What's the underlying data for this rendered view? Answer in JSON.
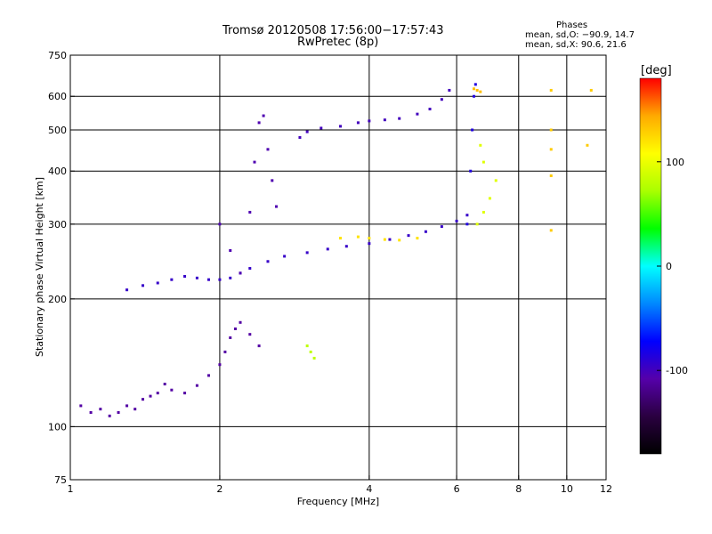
{
  "figure": {
    "title_line1": "Tromsø 20120508 17:56:00−17:57:43",
    "title_line2": "RwPretec (8p)",
    "stats_heading": "Phases",
    "stats_line1": "mean, sd,O: −90.9, 14.7",
    "stats_line2": "mean, sd,X:  90.6, 21.6"
  },
  "chart_data": {
    "type": "scatter",
    "xlabel": "Frequency [MHz]",
    "ylabel": "Stationary phase Virtual Height [km]",
    "x_scale": "log",
    "y_scale": "log",
    "xlim": [
      1,
      12
    ],
    "ylim": [
      75,
      750
    ],
    "x_ticks": [
      1,
      2,
      4,
      6,
      8,
      10,
      12
    ],
    "y_ticks": [
      75,
      100,
      200,
      300,
      400,
      500,
      600,
      750
    ],
    "x_grid": [
      2,
      4,
      6,
      8,
      10
    ],
    "y_grid": [
      100,
      200,
      300,
      400,
      500,
      600
    ],
    "grid": true,
    "colorbar": {
      "label": "[deg]",
      "ticks": [
        100,
        0,
        -100
      ],
      "range": [
        -180,
        180
      ],
      "colormap": [
        "#000000",
        "#2a0040",
        "#5500aa",
        "#0000ff",
        "#0088ff",
        "#00ffff",
        "#00ff00",
        "#aaff00",
        "#ffff00",
        "#ffaa00",
        "#ff0000"
      ]
    },
    "series": [
      {
        "points": [
          [
            1.05,
            112
          ],
          [
            1.1,
            108
          ],
          [
            1.15,
            110
          ],
          [
            1.2,
            106
          ],
          [
            1.25,
            108
          ],
          [
            1.3,
            112
          ],
          [
            1.35,
            110
          ],
          [
            1.4,
            116
          ],
          [
            1.45,
            118
          ],
          [
            1.5,
            120
          ],
          [
            1.55,
            126
          ],
          [
            1.6,
            122
          ],
          [
            1.7,
            120
          ],
          [
            1.8,
            125
          ],
          [
            1.9,
            132
          ],
          [
            2.0,
            140
          ],
          [
            2.05,
            150
          ],
          [
            2.1,
            162
          ],
          [
            2.15,
            170
          ],
          [
            2.2,
            176
          ],
          [
            2.3,
            165
          ],
          [
            2.4,
            155
          ]
        ],
        "phase": -110
      },
      {
        "points": [
          [
            1.3,
            210
          ],
          [
            1.4,
            215
          ],
          [
            1.5,
            218
          ],
          [
            1.6,
            222
          ],
          [
            1.7,
            226
          ],
          [
            1.8,
            224
          ],
          [
            1.9,
            222
          ],
          [
            2.0,
            222
          ],
          [
            2.1,
            224
          ],
          [
            2.2,
            230
          ],
          [
            2.3,
            236
          ],
          [
            2.5,
            245
          ],
          [
            2.7,
            252
          ],
          [
            3.0,
            257
          ],
          [
            3.3,
            262
          ],
          [
            3.6,
            266
          ],
          [
            4.0,
            270
          ],
          [
            4.4,
            276
          ],
          [
            4.8,
            282
          ],
          [
            5.2,
            288
          ],
          [
            5.6,
            296
          ],
          [
            6.0,
            305
          ],
          [
            6.3,
            315
          ]
        ],
        "phase": -95
      },
      {
        "points": [
          [
            2.0,
            300
          ],
          [
            2.1,
            260
          ],
          [
            2.2,
            230
          ],
          [
            2.3,
            320
          ],
          [
            2.35,
            420
          ],
          [
            2.4,
            520
          ],
          [
            2.45,
            540
          ],
          [
            2.5,
            450
          ],
          [
            2.55,
            380
          ],
          [
            2.6,
            330
          ]
        ],
        "phase": -105
      },
      {
        "points": [
          [
            2.9,
            480
          ],
          [
            3.0,
            495
          ],
          [
            3.2,
            505
          ],
          [
            3.5,
            510
          ],
          [
            3.8,
            520
          ],
          [
            4.0,
            525
          ],
          [
            4.3,
            528
          ],
          [
            4.6,
            532
          ],
          [
            5.0,
            545
          ],
          [
            5.3,
            560
          ],
          [
            5.6,
            590
          ],
          [
            5.8,
            620
          ]
        ],
        "phase": -100
      },
      {
        "points": [
          [
            6.3,
            300
          ],
          [
            6.4,
            400
          ],
          [
            6.45,
            500
          ],
          [
            6.5,
            600
          ],
          [
            6.55,
            640
          ]
        ],
        "phase": -85
      },
      {
        "points": [
          [
            3.5,
            278
          ],
          [
            3.8,
            280
          ],
          [
            4.0,
            278
          ],
          [
            4.3,
            276
          ],
          [
            4.6,
            275
          ],
          [
            5.0,
            278
          ]
        ],
        "phase": 120
      },
      {
        "points": [
          [
            6.6,
            300
          ],
          [
            6.8,
            320
          ],
          [
            7.0,
            345
          ],
          [
            7.2,
            380
          ],
          [
            6.8,
            420
          ],
          [
            6.7,
            460
          ]
        ],
        "phase": 95
      },
      {
        "points": [
          [
            6.5,
            625
          ],
          [
            6.6,
            620
          ],
          [
            6.7,
            615
          ]
        ],
        "phase": 135
      },
      {
        "points": [
          [
            3.0,
            155
          ],
          [
            3.05,
            150
          ],
          [
            3.1,
            145
          ]
        ],
        "phase": 80
      },
      {
        "points": [
          [
            9.3,
            620
          ],
          [
            9.3,
            500
          ],
          [
            9.3,
            450
          ],
          [
            9.3,
            390
          ],
          [
            9.3,
            290
          ],
          [
            11.2,
            620
          ],
          [
            11.0,
            460
          ]
        ],
        "phase": 130
      }
    ]
  }
}
